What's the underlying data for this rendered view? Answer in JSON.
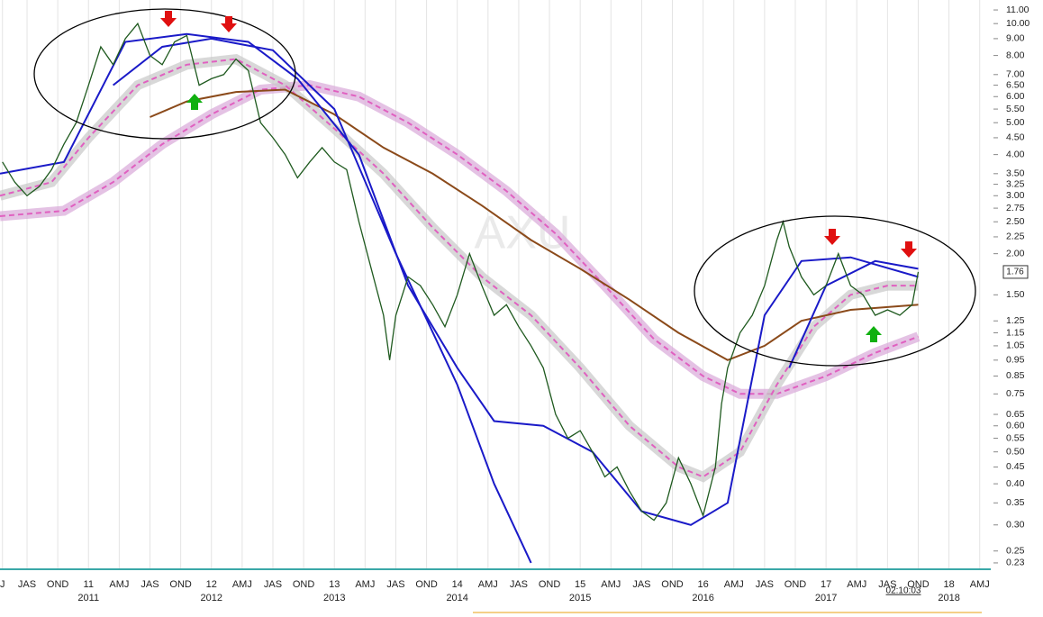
{
  "chart_data": {
    "type": "line",
    "log_scale": true,
    "watermark": "AXU",
    "clock": "02:10:03",
    "last_price": 1.76,
    "xlim": [
      2010.28,
      2018.34
    ],
    "ylim": [
      0.22,
      11.5
    ],
    "xticks": [
      {
        "value": 2010.3,
        "label": "J"
      },
      {
        "value": 2010.5,
        "label": "JAS"
      },
      {
        "value": 2010.75,
        "label": "OND"
      },
      {
        "value": 2011,
        "label": "11"
      },
      {
        "value": 2011.25,
        "label": "AMJ"
      },
      {
        "value": 2011.5,
        "label": "JAS"
      },
      {
        "value": 2011.75,
        "label": "OND"
      },
      {
        "value": 2012,
        "label": "12"
      },
      {
        "value": 2012.25,
        "label": "AMJ"
      },
      {
        "value": 2012.5,
        "label": "JAS"
      },
      {
        "value": 2012.75,
        "label": "OND"
      },
      {
        "value": 2013,
        "label": "13"
      },
      {
        "value": 2013.25,
        "label": "AMJ"
      },
      {
        "value": 2013.5,
        "label": "JAS"
      },
      {
        "value": 2013.75,
        "label": "OND"
      },
      {
        "value": 2014,
        "label": "14"
      },
      {
        "value": 2014.25,
        "label": "AMJ"
      },
      {
        "value": 2014.5,
        "label": "JAS"
      },
      {
        "value": 2014.75,
        "label": "OND"
      },
      {
        "value": 2015,
        "label": "15"
      },
      {
        "value": 2015.25,
        "label": "AMJ"
      },
      {
        "value": 2015.5,
        "label": "JAS"
      },
      {
        "value": 2015.75,
        "label": "OND"
      },
      {
        "value": 2016,
        "label": "16"
      },
      {
        "value": 2016.25,
        "label": "AMJ"
      },
      {
        "value": 2016.5,
        "label": "JAS"
      },
      {
        "value": 2016.75,
        "label": "OND"
      },
      {
        "value": 2017,
        "label": "17"
      },
      {
        "value": 2017.25,
        "label": "AMJ"
      },
      {
        "value": 2017.5,
        "label": "JAS"
      },
      {
        "value": 2017.75,
        "label": "OND"
      },
      {
        "value": 2018,
        "label": "18"
      },
      {
        "value": 2018.25,
        "label": "AMJ"
      }
    ],
    "year_labels": [
      2011,
      2012,
      2013,
      2014,
      2015,
      2016,
      2017,
      2018
    ],
    "yticks": [
      {
        "value": 11,
        "label": "11.00"
      },
      {
        "value": 10,
        "label": "10.00"
      },
      {
        "value": 9,
        "label": "9.00"
      },
      {
        "value": 8,
        "label": "8.00"
      },
      {
        "value": 7,
        "label": "7.00"
      },
      {
        "value": 6.5,
        "label": "6.50"
      },
      {
        "value": 6,
        "label": "6.00"
      },
      {
        "value": 5.5,
        "label": "5.50"
      },
      {
        "value": 5,
        "label": "5.00"
      },
      {
        "value": 4.5,
        "label": "4.50"
      },
      {
        "value": 4,
        "label": "4.00"
      },
      {
        "value": 3.5,
        "label": "3.50"
      },
      {
        "value": 3.25,
        "label": "3.25"
      },
      {
        "value": 3,
        "label": "3.00"
      },
      {
        "value": 2.75,
        "label": "2.75"
      },
      {
        "value": 2.5,
        "label": "2.50"
      },
      {
        "value": 2.25,
        "label": "2.25"
      },
      {
        "value": 2,
        "label": "2.00"
      },
      {
        "value": 1.5,
        "label": "1.50"
      },
      {
        "value": 1.25,
        "label": "1.25"
      },
      {
        "value": 1.15,
        "label": "1.15"
      },
      {
        "value": 1.05,
        "label": "1.05"
      },
      {
        "value": 0.95,
        "label": "0.95"
      },
      {
        "value": 0.85,
        "label": "0.85"
      },
      {
        "value": 0.75,
        "label": "0.75"
      },
      {
        "value": 0.65,
        "label": "0.65"
      },
      {
        "value": 0.6,
        "label": "0.60"
      },
      {
        "value": 0.55,
        "label": "0.55"
      },
      {
        "value": 0.5,
        "label": "0.50"
      },
      {
        "value": 0.45,
        "label": "0.45"
      },
      {
        "value": 0.4,
        "label": "0.40"
      },
      {
        "value": 0.35,
        "label": "0.35"
      },
      {
        "value": 0.3,
        "label": "0.30"
      },
      {
        "value": 0.25,
        "label": "0.25"
      },
      {
        "value": 0.23,
        "label": "0.23"
      }
    ],
    "series": [
      {
        "color": "#e060c0",
        "halo": "#d8a8d8",
        "dash": true,
        "x": [
          2010.28,
          2010.8,
          2011.2,
          2011.6,
          2012.0,
          2012.4,
          2012.8,
          2013.2,
          2013.6,
          2014.0,
          2014.4,
          2014.8,
          2015.2,
          2015.6,
          2016.0,
          2016.3,
          2016.6,
          2017.0,
          2017.4,
          2017.75
        ],
        "values": [
          2.6,
          2.7,
          3.3,
          4.3,
          5.3,
          6.3,
          6.5,
          6.0,
          5.0,
          4.0,
          3.1,
          2.3,
          1.6,
          1.1,
          0.85,
          0.75,
          0.75,
          0.85,
          1.0,
          1.12
        ]
      },
      {
        "color": "#e060c0",
        "halo": "#c8c8c8",
        "dash": true,
        "x": [
          2010.28,
          2010.7,
          2011.0,
          2011.4,
          2011.8,
          2012.2,
          2012.6,
          2013.0,
          2013.4,
          2013.8,
          2014.2,
          2014.6,
          2015.0,
          2015.4,
          2015.8,
          2016.0,
          2016.3,
          2016.6,
          2016.9,
          2017.2,
          2017.5,
          2017.75
        ],
        "values": [
          3.0,
          3.3,
          4.5,
          6.5,
          7.5,
          7.8,
          6.5,
          4.8,
          3.5,
          2.4,
          1.7,
          1.3,
          0.9,
          0.6,
          0.45,
          0.42,
          0.5,
          0.8,
          1.2,
          1.5,
          1.6,
          1.6
        ]
      },
      {
        "color": "#8b4a1a",
        "x": [
          2011.5,
          2011.8,
          2012.2,
          2012.6,
          2013.0,
          2013.4,
          2013.8,
          2014.2,
          2014.6,
          2015.0,
          2015.4,
          2015.8,
          2016.2,
          2016.5,
          2016.8,
          2017.2,
          2017.75
        ],
        "values": [
          5.2,
          5.8,
          6.2,
          6.3,
          5.3,
          4.2,
          3.5,
          2.8,
          2.2,
          1.8,
          1.45,
          1.15,
          0.95,
          1.05,
          1.25,
          1.35,
          1.4
        ]
      },
      {
        "color": "#1a1ac8",
        "x": [
          2010.28,
          2010.8,
          2011.3,
          2011.8,
          2012.3,
          2012.7,
          2013.2,
          2013.6,
          2014.0,
          2014.3,
          2014.7,
          2015.1,
          2015.5,
          2015.9,
          2016.2,
          2016.5,
          2016.8,
          2017.2,
          2017.75
        ],
        "values": [
          3.5,
          3.8,
          8.8,
          9.3,
          8.8,
          6.8,
          4.0,
          1.6,
          0.9,
          0.62,
          0.6,
          0.5,
          0.33,
          0.3,
          0.35,
          1.3,
          1.9,
          1.95,
          1.7
        ]
      },
      {
        "color": "#1a1ac8",
        "x": [
          2011.2,
          2011.6,
          2012.0,
          2012.5,
          2013.0,
          2013.5,
          2014.0,
          2014.3,
          2014.6,
          2016.5,
          2016.7,
          2017.0,
          2017.4,
          2017.75
        ],
        "values": [
          6.5,
          8.5,
          9.0,
          8.3,
          5.5,
          2.0,
          0.8,
          0.4,
          0.23,
          null,
          0.9,
          1.6,
          1.9,
          1.8
        ]
      },
      {
        "color": "#1f5a1f",
        "x": [
          2010.3,
          2010.4,
          2010.5,
          2010.6,
          2010.7,
          2010.8,
          2010.9,
          2011.0,
          2011.1,
          2011.2,
          2011.3,
          2011.4,
          2011.5,
          2011.6,
          2011.7,
          2011.8,
          2011.9,
          2012.0,
          2012.1,
          2012.2,
          2012.3,
          2012.4,
          2012.5,
          2012.6,
          2012.7,
          2012.8,
          2012.9,
          2013.0,
          2013.1,
          2013.2,
          2013.3,
          2013.4,
          2013.45,
          2013.5,
          2013.6,
          2013.7,
          2013.8,
          2013.9,
          2014.0,
          2014.1,
          2014.2,
          2014.3,
          2014.4,
          2014.5,
          2014.6,
          2014.7,
          2014.8,
          2014.9,
          2015.0,
          2015.1,
          2015.2,
          2015.3,
          2015.4,
          2015.5,
          2015.6,
          2015.7,
          2015.8,
          2015.9,
          2016.0,
          2016.1,
          2016.15,
          2016.2,
          2016.3,
          2016.4,
          2016.5,
          2016.6,
          2016.65,
          2016.7,
          2016.8,
          2016.9,
          2017.0,
          2017.1,
          2017.2,
          2017.3,
          2017.4,
          2017.5,
          2017.6,
          2017.7,
          2017.75
        ],
        "values": [
          3.8,
          3.3,
          3.0,
          3.2,
          3.6,
          4.3,
          5.0,
          6.5,
          8.5,
          7.5,
          9.0,
          10.0,
          8.0,
          7.5,
          8.8,
          9.2,
          6.5,
          6.8,
          7.0,
          7.8,
          7.2,
          5.0,
          4.5,
          4.0,
          3.4,
          3.8,
          4.2,
          3.8,
          3.6,
          2.5,
          1.8,
          1.3,
          0.95,
          1.3,
          1.7,
          1.6,
          1.4,
          1.2,
          1.5,
          2.0,
          1.6,
          1.3,
          1.4,
          1.2,
          1.05,
          0.9,
          0.65,
          0.55,
          0.58,
          0.5,
          0.42,
          0.45,
          0.38,
          0.33,
          0.31,
          0.35,
          0.48,
          0.4,
          0.32,
          0.45,
          0.7,
          0.9,
          1.15,
          1.3,
          1.6,
          2.2,
          2.5,
          2.1,
          1.7,
          1.5,
          1.6,
          2.0,
          1.6,
          1.5,
          1.3,
          1.35,
          1.3,
          1.4,
          1.76
        ]
      }
    ]
  }
}
